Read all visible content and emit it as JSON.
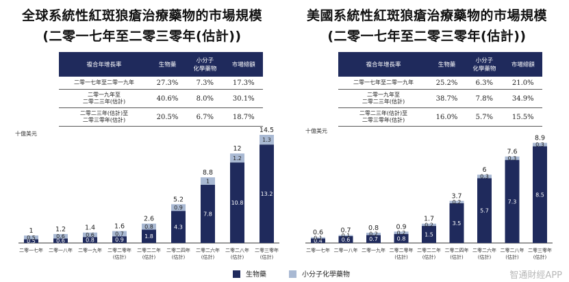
{
  "colors": {
    "bio": "#1f2a5c",
    "small": "#a9b9d3"
  },
  "left": {
    "title_line1": "全球系統性紅斑狼瘡治療藥物的市場規模",
    "title_line2": "(二零一七年至二零三零年(估計))",
    "table": {
      "headers": [
        "複合年增長率",
        "生物藥",
        "小分子\n化學藥物",
        "市場總額"
      ],
      "rows": [
        {
          "period": "二零一七年至二零一九年",
          "bio": "27.3%",
          "small": "7.3%",
          "total": "17.3%"
        },
        {
          "period": "二零一九年至\n二零二三年(估計)",
          "bio": "40.6%",
          "small": "8.0%",
          "total": "30.1%"
        },
        {
          "period": "二零二三年(估計)至\n二零三零年(估計)",
          "bio": "20.5%",
          "small": "6.7%",
          "total": "18.7%"
        }
      ]
    },
    "unit": "十億美元"
  },
  "right": {
    "title_line1": "美國系統性紅斑狼瘡治療藥物的市場規模",
    "title_line2": "(二零一七年至二零三零年(估計))",
    "table": {
      "headers": [
        "複合年增長率",
        "生物藥",
        "小分子\n化學藥物",
        "市場總額"
      ],
      "rows": [
        {
          "period": "二零一七年至二零一九年",
          "bio": "25.2%",
          "small": "6.3%",
          "total": "21.0%"
        },
        {
          "period": "二零一九年至\n二零二三年(估計)",
          "bio": "38.7%",
          "small": "7.8%",
          "total": "34.9%"
        },
        {
          "period": "二零二三年(估計)至\n二零三零年(估計)",
          "bio": "16.0%",
          "small": "5.7%",
          "total": "15.5%"
        }
      ]
    },
    "unit": "十億美元"
  },
  "legend": {
    "bio": "生物藥",
    "small": "小分子化學藥物"
  },
  "watermark": "智通財經APP",
  "chart_data": [
    {
      "type": "bar",
      "stacked": true,
      "title": "全球系統性紅斑狼瘡治療藥物的市場規模",
      "ylabel": "十億美元",
      "categories": [
        "二零一七年",
        "二零一八年",
        "二零一九年",
        "二零二零年\n(估計)",
        "二零二二年\n(估計)",
        "二零二四年\n(估計)",
        "二零二六年\n(估計)",
        "二零二八年\n(估計)",
        "二零三零年\n(估計)"
      ],
      "series": [
        {
          "name": "生物藥",
          "values": [
            0.5,
            0.6,
            0.8,
            0.9,
            1.8,
            4.3,
            7.8,
            10.8,
            13.2
          ]
        },
        {
          "name": "小分子化學藥物",
          "values": [
            0.5,
            0.6,
            0.6,
            0.7,
            0.8,
            0.9,
            1.0,
            1.2,
            1.3
          ]
        }
      ],
      "totals": [
        1.0,
        1.2,
        1.4,
        1.6,
        2.6,
        5.2,
        8.8,
        12.0,
        14.5
      ],
      "ylim": [
        0,
        14.5
      ]
    },
    {
      "type": "bar",
      "stacked": true,
      "title": "美國系統性紅斑狼瘡治療藥物的市場規模",
      "ylabel": "十億美元",
      "categories": [
        "二零一七年",
        "二零一八年",
        "二零一九年",
        "二零二零年\n(估計)",
        "二零二二年\n(估計)",
        "二零二四年\n(估計)",
        "二零二六年\n(估計)",
        "二零二八年\n(估計)",
        "二零三零年\n(估計)"
      ],
      "series": [
        {
          "name": "生物藥",
          "values": [
            0.4,
            0.6,
            0.7,
            0.8,
            1.5,
            3.5,
            5.7,
            7.3,
            8.5
          ]
        },
        {
          "name": "小分子化學藥物",
          "values": [
            0.1,
            0.1,
            0.2,
            0.2,
            0.2,
            0.2,
            0.3,
            0.3,
            0.3
          ]
        }
      ],
      "totals": [
        0.6,
        0.7,
        0.8,
        0.9,
        1.7,
        3.7,
        6.0,
        7.6,
        8.9
      ],
      "ylim": [
        0,
        8.9
      ]
    }
  ]
}
